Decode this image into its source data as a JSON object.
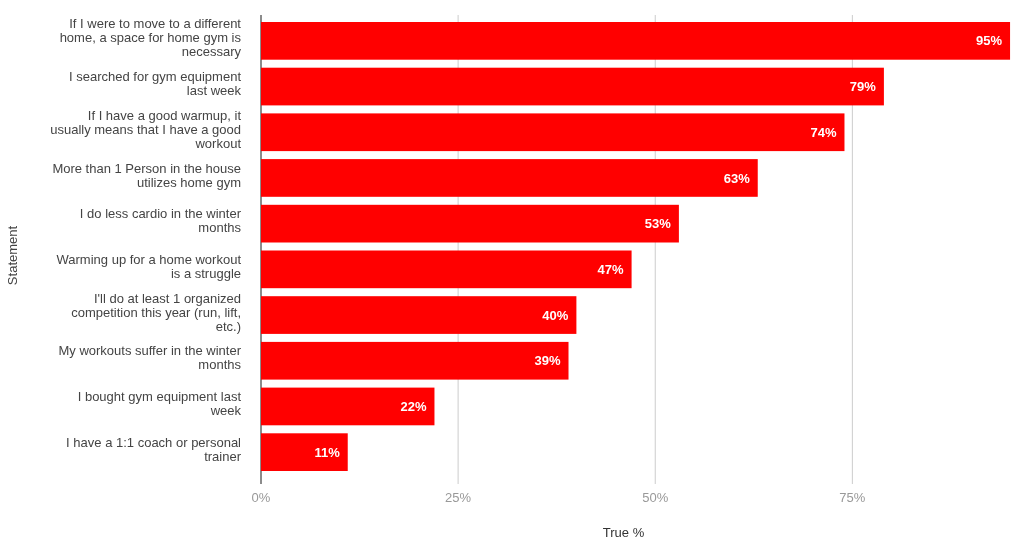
{
  "chart_data": {
    "type": "bar",
    "orientation": "horizontal",
    "categories": [
      "If I were to move to a different home, a space for home gym is necessary",
      "I searched for gym equipment last week",
      "If I have a good warmup, it usually means that I have a good workout",
      "More than 1 Person in the house utilizes home gym",
      "I do less cardio in the winter months",
      "Warming up for a home workout is a struggle",
      "I'll do at least 1 organized competition this year (run, lift, etc.)",
      "My workouts suffer in the winter months",
      "I bought gym equipment last week",
      "I have a 1:1 coach or personal trainer"
    ],
    "values": [
      95,
      79,
      74,
      63,
      53,
      47,
      40,
      39,
      22,
      11
    ],
    "value_labels": [
      "95%",
      "79%",
      "74%",
      "63%",
      "53%",
      "47%",
      "40%",
      "39%",
      "22%",
      "11%"
    ],
    "color": "#ff0000",
    "xlim": [
      0,
      95.5
    ],
    "xticks": [
      {
        "value": 0,
        "label": "0%"
      },
      {
        "value": 25,
        "label": "25%"
      },
      {
        "value": 50,
        "label": "50%"
      },
      {
        "value": 75,
        "label": "75%"
      }
    ],
    "grid": "x",
    "xlabel": "True %",
    "ylabel": "Statement"
  }
}
